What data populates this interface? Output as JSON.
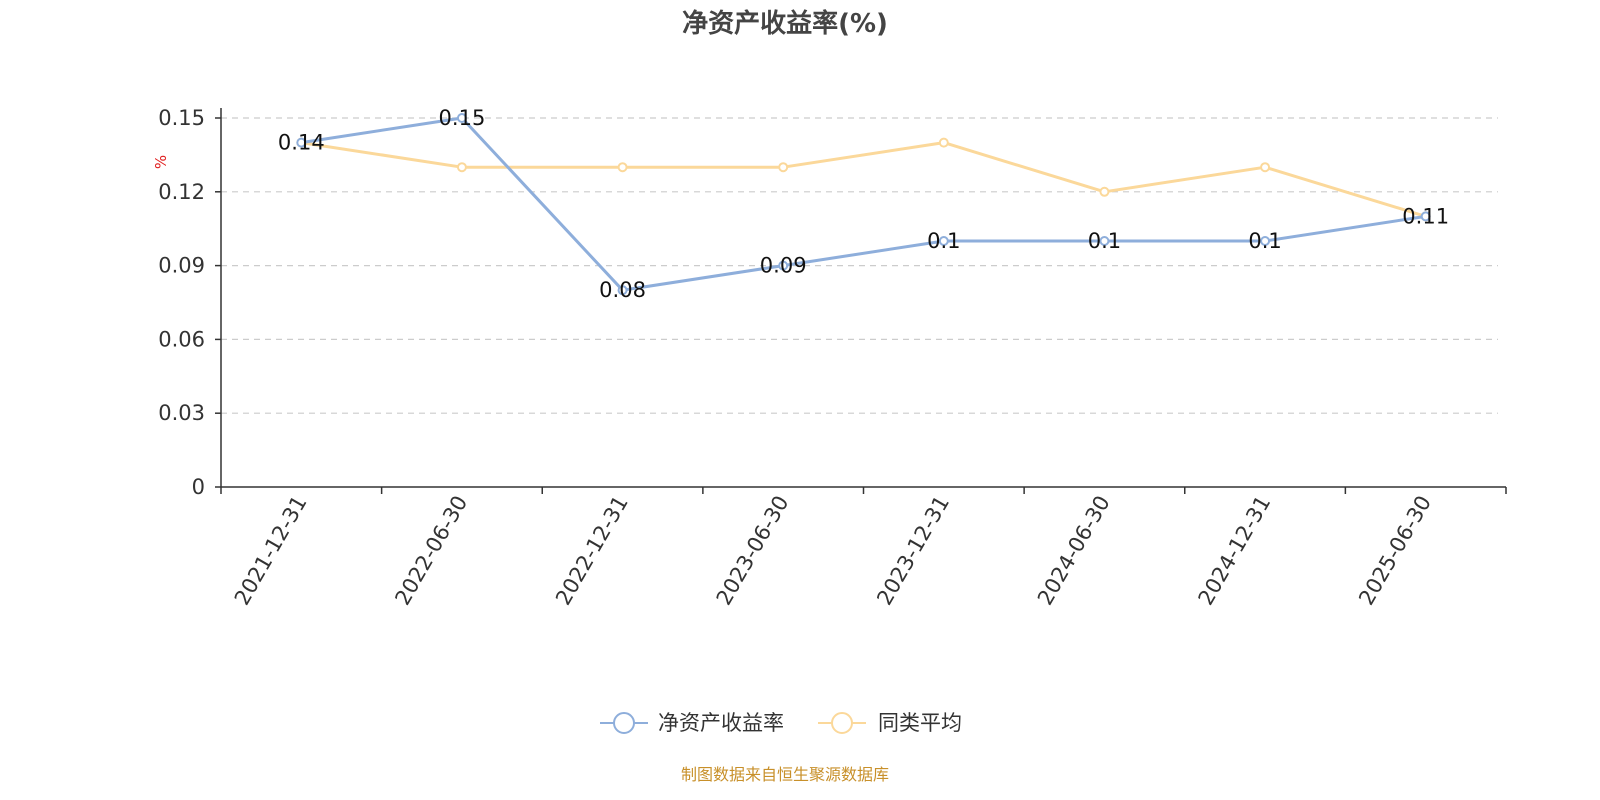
{
  "chart_data": {
    "type": "line",
    "title": "净资产收益率(%)",
    "ylabel": "%",
    "ylim": [
      0,
      0.15
    ],
    "yticks": [
      "0",
      "0.03",
      "0.06",
      "0.09",
      "0.12",
      "0.15"
    ],
    "categories": [
      "2021-12-31",
      "2022-06-30",
      "2022-12-31",
      "2023-06-30",
      "2023-12-31",
      "2024-06-30",
      "2024-12-31",
      "2025-06-30"
    ],
    "grid": true,
    "legend_position": "bottom-center",
    "series": [
      {
        "name": "净资产收益率",
        "color": "#8eaedb",
        "values": [
          0.14,
          0.15,
          0.08,
          0.09,
          0.1,
          0.1,
          0.1,
          0.11
        ],
        "labels": [
          "0.14",
          "0.15",
          "0.08",
          "0.09",
          "0.1",
          "0.1",
          "0.1",
          "0.11"
        ]
      },
      {
        "name": "同类平均",
        "color": "#fbd89a",
        "values": [
          0.14,
          0.13,
          0.13,
          0.13,
          0.14,
          0.12,
          0.13,
          0.11
        ]
      }
    ],
    "source": "制图数据来自恒生聚源数据库"
  }
}
